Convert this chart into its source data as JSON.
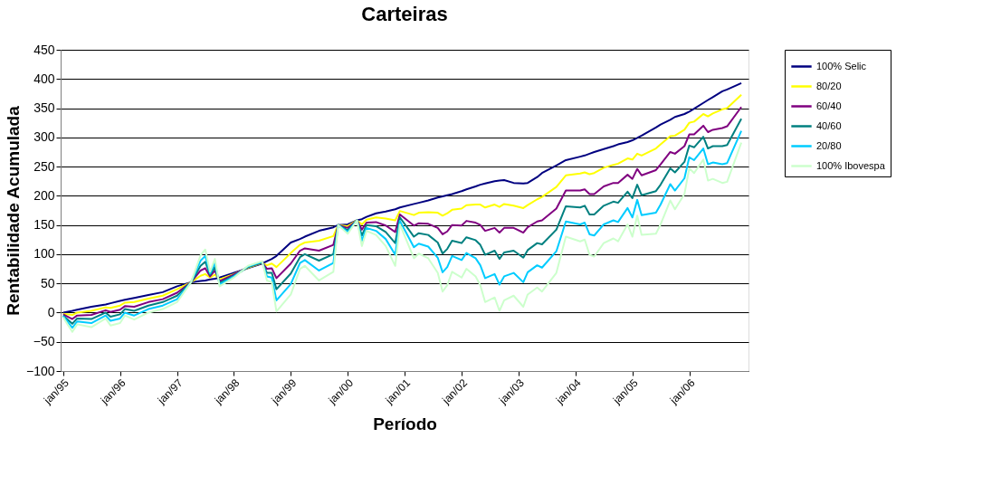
{
  "chart_data": {
    "type": "line",
    "title": "Carteiras",
    "xlabel": "Período",
    "ylabel": "Rentabilidade Acumulada",
    "x": [
      "1995-01",
      "1995-03",
      "1995-04",
      "1995-07",
      "1995-10",
      "1995-11",
      "1996-01",
      "1996-02",
      "1996-04",
      "1996-07",
      "1996-10",
      "1997-01",
      "1997-04",
      "1997-06",
      "1997-07",
      "1997-08",
      "1997-09",
      "1997-10",
      "1998-01",
      "1998-04",
      "1998-07",
      "1998-08",
      "1998-09",
      "1998-10",
      "1999-01",
      "1999-03",
      "1999-04",
      "1999-07",
      "1999-10",
      "1999-11",
      "2000-01",
      "2000-03",
      "2000-04",
      "2000-05",
      "2000-07",
      "2000-09",
      "2000-11",
      "2000-12",
      "2001-03",
      "2001-04",
      "2001-06",
      "2001-08",
      "2001-09",
      "2001-10",
      "2001-11",
      "2002-01",
      "2002-02",
      "2002-04",
      "2002-05",
      "2002-06",
      "2002-08",
      "2002-09",
      "2002-10",
      "2002-12",
      "2003-02",
      "2003-03",
      "2003-05",
      "2003-06",
      "2003-09",
      "2003-11",
      "2004-02",
      "2004-03",
      "2004-04",
      "2004-05",
      "2004-07",
      "2004-09",
      "2004-10",
      "2004-12",
      "2005-01",
      "2005-02",
      "2005-03",
      "2005-06",
      "2005-07",
      "2005-09",
      "2005-10",
      "2005-12",
      "2006-01",
      "2006-02",
      "2006-04",
      "2006-05",
      "2006-06",
      "2006-08",
      "2006-09",
      "2006-12"
    ],
    "series": [
      {
        "name": "100% Selic",
        "color": "#000080",
        "values": [
          0,
          3,
          5,
          10,
          14,
          16,
          20,
          22,
          25,
          30,
          35,
          45,
          52,
          54,
          55,
          57,
          58,
          60,
          68,
          76,
          84,
          88,
          92,
          97,
          120,
          126,
          130,
          140,
          146,
          150,
          151,
          158,
          160,
          164,
          170,
          173,
          177,
          180,
          186,
          188,
          192,
          197,
          199,
          201,
          203,
          208,
          211,
          216,
          219,
          221,
          225,
          226,
          227,
          222,
          221,
          222,
          232,
          239,
          252,
          261,
          267,
          269,
          272,
          275,
          280,
          285,
          288,
          292,
          295,
          299,
          303,
          317,
          322,
          330,
          335,
          340,
          344,
          349,
          359,
          364,
          369,
          379,
          382,
          393
        ]
      },
      {
        "name": "80/20",
        "color": "#ffff00",
        "values": [
          -2,
          -4,
          0,
          3,
          9,
          8,
          12,
          17,
          18,
          24,
          29,
          40,
          52,
          63,
          66,
          60,
          65,
          57,
          66,
          77,
          85,
          81,
          84,
          78,
          102,
          116,
          120,
          123,
          131,
          150,
          148,
          158,
          151,
          159,
          163,
          161,
          158,
          174,
          167,
          171,
          172,
          171,
          166,
          170,
          176,
          178,
          184,
          185,
          185,
          180,
          185,
          181,
          186,
          183,
          179,
          184,
          194,
          198,
          215,
          235,
          238,
          240,
          237,
          239,
          248,
          253,
          255,
          264,
          262,
          272,
          269,
          281,
          288,
          302,
          303,
          313,
          325,
          327,
          340,
          336,
          341,
          348,
          350,
          373
        ]
      },
      {
        "name": "60/40",
        "color": "#800080",
        "values": [
          -3,
          -11,
          -5,
          -4,
          4,
          1,
          5,
          11,
          10,
          18,
          23,
          34,
          52,
          72,
          76,
          62,
          72,
          54,
          65,
          78,
          86,
          75,
          76,
          59,
          84,
          106,
          110,
          106,
          116,
          150,
          145,
          158,
          142,
          154,
          155,
          149,
          138,
          168,
          149,
          153,
          152,
          145,
          134,
          139,
          150,
          149,
          157,
          154,
          150,
          140,
          145,
          137,
          145,
          145,
          137,
          146,
          156,
          158,
          178,
          209,
          209,
          211,
          203,
          203,
          216,
          222,
          222,
          236,
          229,
          246,
          235,
          244,
          254,
          275,
          272,
          285,
          305,
          305,
          320,
          309,
          313,
          316,
          319,
          352
        ]
      },
      {
        "name": "40/60",
        "color": "#008080",
        "values": [
          -5,
          -19,
          -10,
          -11,
          0,
          -7,
          -3,
          6,
          3,
          12,
          18,
          29,
          52,
          80,
          87,
          65,
          78,
          51,
          63,
          78,
          86,
          68,
          68,
          40,
          67,
          95,
          100,
          89,
          100,
          150,
          141,
          158,
          132,
          150,
          148,
          138,
          119,
          163,
          130,
          136,
          133,
          120,
          101,
          109,
          123,
          119,
          129,
          124,
          116,
          99,
          106,
          92,
          103,
          106,
          94,
          107,
          119,
          117,
          142,
          182,
          180,
          183,
          168,
          168,
          183,
          190,
          188,
          207,
          196,
          219,
          201,
          208,
          219,
          247,
          240,
          258,
          286,
          283,
          301,
          281,
          285,
          285,
          287,
          332
        ]
      },
      {
        "name": "20/80",
        "color": "#00ccff",
        "values": [
          -6,
          -26,
          -15,
          -18,
          -5,
          -14,
          -10,
          0,
          -5,
          6,
          12,
          23,
          52,
          89,
          97,
          67,
          85,
          48,
          62,
          79,
          87,
          62,
          60,
          21,
          49,
          85,
          90,
          72,
          85,
          150,
          138,
          158,
          123,
          145,
          140,
          126,
          99,
          157,
          112,
          118,
          113,
          94,
          69,
          78,
          97,
          90,
          102,
          93,
          81,
          59,
          66,
          48,
          62,
          68,
          52,
          69,
          81,
          77,
          105,
          156,
          151,
          154,
          134,
          132,
          151,
          158,
          155,
          179,
          163,
          193,
          167,
          171,
          185,
          220,
          209,
          230,
          266,
          261,
          281,
          254,
          257,
          254,
          256,
          311
        ]
      },
      {
        "name": "100% Ibovespa",
        "color": "#ccffcc",
        "values": [
          -8,
          -33,
          -20,
          -25,
          -10,
          -22,
          -18,
          -5,
          -12,
          0,
          6,
          18,
          52,
          98,
          108,
          70,
          92,
          45,
          60,
          80,
          88,
          55,
          52,
          2,
          31,
          75,
          80,
          55,
          70,
          150,
          135,
          158,
          114,
          140,
          133,
          114,
          80,
          151,
          93,
          101,
          93,
          68,
          36,
          47,
          70,
          60,
          75,
          62,
          47,
          18,
          26,
          3,
          21,
          29,
          10,
          31,
          43,
          36,
          68,
          130,
          122,
          125,
          99,
          96,
          119,
          127,
          122,
          151,
          130,
          166,
          133,
          135,
          151,
          192,
          177,
          203,
          247,
          239,
          262,
          226,
          229,
          222,
          224,
          291
        ]
      }
    ],
    "xlim": [
      "1994-12-16",
      "2007-01-16"
    ],
    "xticks": [
      {
        "value": "1995-01",
        "label": "jan/95"
      },
      {
        "value": "1996-01",
        "label": "jan/96"
      },
      {
        "value": "1997-01",
        "label": "jan/97"
      },
      {
        "value": "1998-01",
        "label": "jan/98"
      },
      {
        "value": "1999-01",
        "label": "jan/99"
      },
      {
        "value": "2000-01",
        "label": "jan/00"
      },
      {
        "value": "2001-01",
        "label": "jan/01"
      },
      {
        "value": "2002-01",
        "label": "jan/02"
      },
      {
        "value": "2003-01",
        "label": "jan/03"
      },
      {
        "value": "2004-01",
        "label": "jan/04"
      },
      {
        "value": "2005-01",
        "label": "jan/05"
      },
      {
        "value": "2006-01",
        "label": "jan/06"
      }
    ],
    "ylim": [
      -100,
      450
    ],
    "yticks": [
      -100,
      -50,
      0,
      50,
      100,
      150,
      200,
      250,
      300,
      350,
      400,
      450
    ],
    "grid": "y",
    "legend": "right"
  }
}
